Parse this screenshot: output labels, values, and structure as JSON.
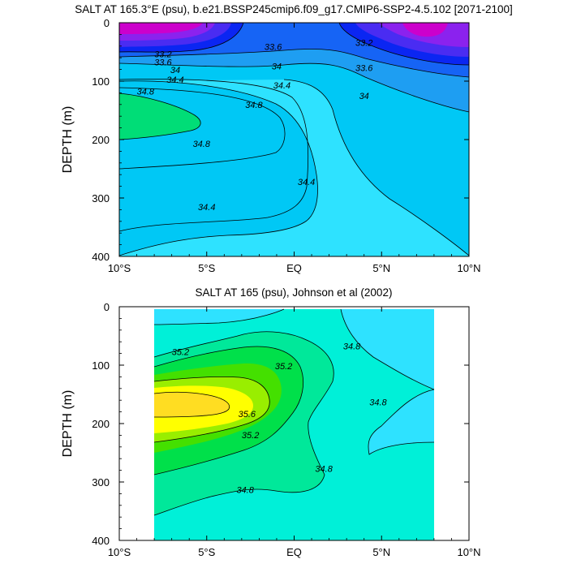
{
  "chart_data": [
    {
      "type": "contour",
      "title": "SALT AT 165.3°E (psu), b.e21.BSSP245cmip6.f09_g17.CMIP6-SSP2-4.5.102 [2071-2100]",
      "ylabel": "DEPTH (m)",
      "xlabel": "",
      "x_tick_labels": [
        "10°S",
        "5°S",
        "EQ",
        "5°N",
        "10°N"
      ],
      "x_ticks": [
        -10,
        -5,
        0,
        5,
        10
      ],
      "xlim": [
        -10,
        10
      ],
      "y_tick_labels": [
        "0",
        "100",
        "200",
        "300",
        "400"
      ],
      "y_ticks": [
        0,
        100,
        200,
        300,
        400
      ],
      "ylim": [
        0,
        400
      ],
      "y_reversed": true,
      "data_extent": {
        "lat": [
          -10,
          10
        ],
        "depth": [
          5,
          400
        ]
      },
      "contour_levels": [
        33.2,
        33.6,
        34,
        34.4,
        34.8
      ],
      "contour_labels": [
        {
          "text": "33.2",
          "lat": -7.5,
          "depth": 56
        },
        {
          "text": "33.6",
          "lat": -7.5,
          "depth": 70
        },
        {
          "text": "34",
          "lat": -6.8,
          "depth": 83
        },
        {
          "text": "34.4",
          "lat": -6.8,
          "depth": 100
        },
        {
          "text": "34.8",
          "lat": -8.5,
          "depth": 120
        },
        {
          "text": "33.6",
          "lat": -1.2,
          "depth": 44
        },
        {
          "text": "34",
          "lat": -1.0,
          "depth": 77
        },
        {
          "text": "34.4",
          "lat": -0.7,
          "depth": 110
        },
        {
          "text": "34.8",
          "lat": -2.3,
          "depth": 143
        },
        {
          "text": "34.8",
          "lat": -5.3,
          "depth": 210
        },
        {
          "text": "34.4",
          "lat": 0.7,
          "depth": 275
        },
        {
          "text": "34.4",
          "lat": -5.0,
          "depth": 318
        },
        {
          "text": "33.2",
          "lat": 4.0,
          "depth": 37
        },
        {
          "text": "33.6",
          "lat": 4.0,
          "depth": 80
        },
        {
          "text": "34",
          "lat": 4.0,
          "depth": 128
        }
      ],
      "colors": [
        "#cc00cc",
        "#8b22ee",
        "#4a2cf2",
        "#0b26f2",
        "#1664f5",
        "#1e9ef2",
        "#00c8f5",
        "#2ee2ff",
        "#00dd77"
      ]
    },
    {
      "type": "contour",
      "title": "SALT AT 165 (psu), Johnson et al (2002)",
      "ylabel": "DEPTH (m)",
      "xlabel": "",
      "x_tick_labels": [
        "10°S",
        "5°S",
        "EQ",
        "5°N",
        "10°N"
      ],
      "x_ticks": [
        -10,
        -5,
        0,
        5,
        10
      ],
      "xlim": [
        -10,
        10
      ],
      "y_tick_labels": [
        "0",
        "100",
        "200",
        "300",
        "400"
      ],
      "y_ticks": [
        0,
        100,
        200,
        300,
        400
      ],
      "ylim": [
        0,
        400
      ],
      "y_reversed": true,
      "data_extent": {
        "lat": [
          -8,
          8
        ],
        "depth": [
          5,
          400
        ]
      },
      "contour_levels": [
        34.8,
        35.2,
        35.6
      ],
      "contour_labels": [
        {
          "text": "35.2",
          "lat": -6.5,
          "depth": 80
        },
        {
          "text": "35.2",
          "lat": -0.6,
          "depth": 104
        },
        {
          "text": "34.8",
          "lat": 3.3,
          "depth": 70
        },
        {
          "text": "35.6",
          "lat": -2.7,
          "depth": 186
        },
        {
          "text": "35.2",
          "lat": -2.5,
          "depth": 222
        },
        {
          "text": "34.8",
          "lat": 4.8,
          "depth": 166
        },
        {
          "text": "34.8",
          "lat": 1.7,
          "depth": 280
        },
        {
          "text": "34.8",
          "lat": -2.8,
          "depth": 316
        }
      ],
      "colors": [
        "#2ee2ff",
        "#00f0d8",
        "#00e89a",
        "#00e04a",
        "#44e000",
        "#99ee00",
        "#ffff00",
        "#ffdd22"
      ]
    }
  ]
}
